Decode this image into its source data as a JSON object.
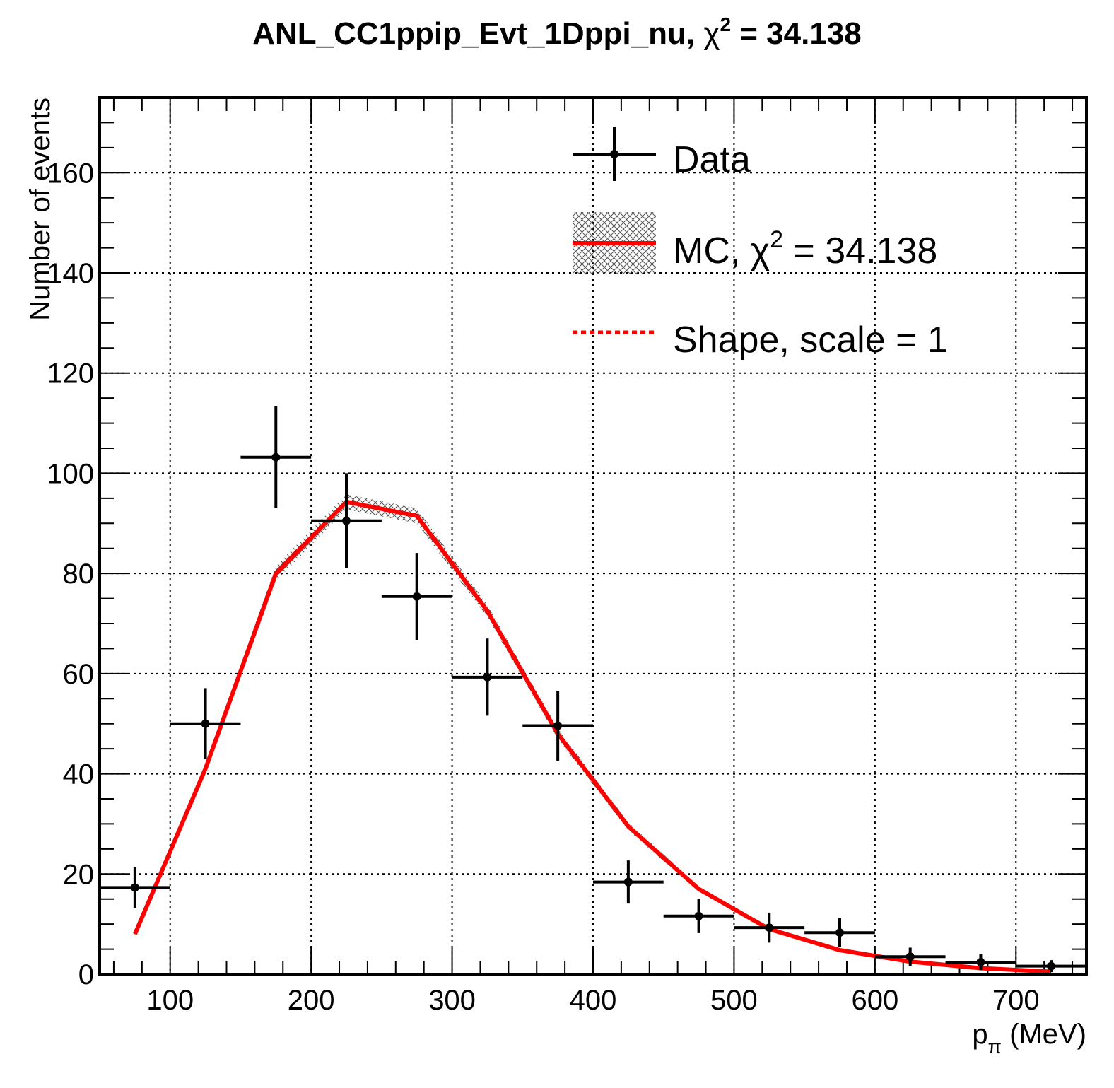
{
  "chart_data": {
    "type": "scatter",
    "title": "ANL_CC1ppip_Evt_1Dppi_nu, χ² = 34.138",
    "title_main": "ANL_CC1ppip_Evt_1Dppi_nu, ",
    "title_chi": "χ",
    "title_sup": "2",
    "title_value": " = 34.138",
    "xlabel_main": "p",
    "xlabel_sub": "π",
    "xlabel_unit": " (MeV)",
    "ylabel": "Number of events",
    "xlim": [
      50,
      750
    ],
    "ylim": [
      0,
      175
    ],
    "xticks": [
      100,
      200,
      300,
      400,
      500,
      600,
      700
    ],
    "yticks": [
      0,
      20,
      40,
      60,
      80,
      100,
      120,
      140,
      160
    ],
    "grid": true,
    "legend_position": "top-right",
    "legend": {
      "data": "Data",
      "mc_main": "MC, ",
      "mc_chi": "χ",
      "mc_sup": "2",
      "mc_value": " = 34.138",
      "shape": "Shape, scale = 1"
    },
    "colors": {
      "data": "#000000",
      "mc": "#ff0000",
      "shape": "#ff0000"
    },
    "series": [
      {
        "name": "Data",
        "x": [
          75,
          125,
          175,
          225,
          275,
          325,
          375,
          425,
          475,
          525,
          575,
          625,
          675,
          725
        ],
        "x_err": [
          25,
          25,
          25,
          25,
          25,
          25,
          25,
          25,
          25,
          25,
          25,
          25,
          25,
          25
        ],
        "y": [
          17.3,
          50.0,
          103.2,
          90.5,
          75.4,
          59.3,
          49.6,
          18.4,
          11.6,
          9.3,
          8.3,
          3.5,
          2.4,
          1.6
        ],
        "y_err": [
          4.1,
          7.1,
          10.2,
          9.5,
          8.7,
          7.7,
          7.0,
          4.3,
          3.4,
          3.0,
          2.9,
          1.8,
          1.6,
          1.2
        ]
      },
      {
        "name": "MC, χ² = 34.138",
        "x": [
          75,
          125,
          175,
          225,
          275,
          325,
          375,
          425,
          475,
          525,
          575,
          625,
          675,
          725
        ],
        "y": [
          8.0,
          41.0,
          80.0,
          94.3,
          91.5,
          72.5,
          48.0,
          29.5,
          17.0,
          9.0,
          4.8,
          2.5,
          1.2,
          0.5
        ],
        "y_err": [
          0.5,
          1.0,
          1.5,
          1.5,
          1.5,
          1.2,
          1.0,
          0.8,
          0.5,
          0.4,
          0.3,
          0.2,
          0.1,
          0.1
        ]
      }
    ]
  }
}
